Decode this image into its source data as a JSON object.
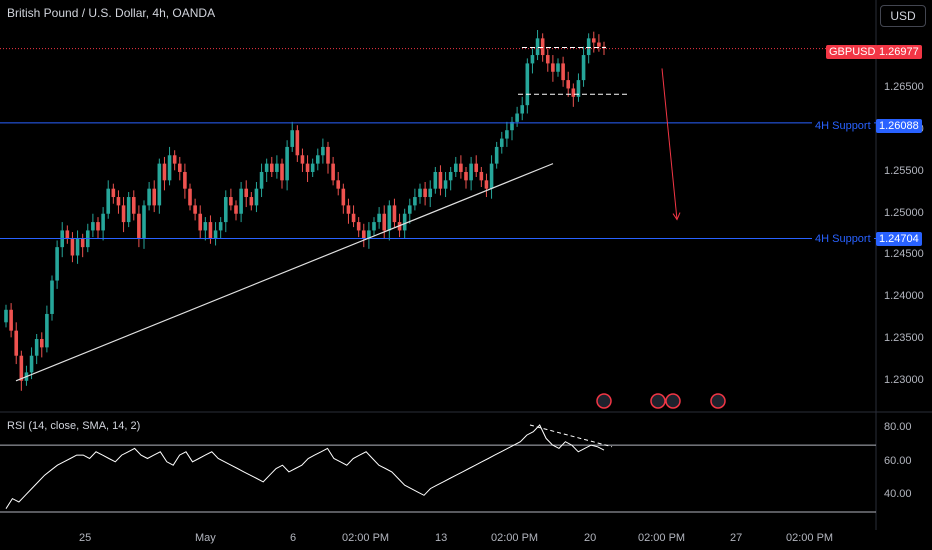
{
  "header": {
    "title": "British Pound / U.S. Dollar, 4h, OANDA",
    "currency_button": "USD"
  },
  "colors": {
    "background": "#000000",
    "up": "#26a69a",
    "down": "#ef5350",
    "support": "#2962ff",
    "current_price": "#f23645",
    "rsi_line": "#ffffff",
    "trendline": "#e0e0e0",
    "forecast_arrow": "#f23645"
  },
  "chart_data": [
    {
      "type": "candlestick",
      "symbol": "GBPUSD",
      "title": "British Pound / U.S. Dollar, 4h, OANDA",
      "ylim": [
        1.2265,
        1.272
      ],
      "y_ticks": [
        "1.26500",
        "1.26000",
        "1.25500",
        "1.25000",
        "1.24500",
        "1.24000",
        "1.23500",
        "1.23000"
      ],
      "x_ticks": [
        "25",
        "May",
        "6",
        "02:00 PM",
        "13",
        "02:00 PM",
        "20",
        "02:00 PM",
        "27",
        "02:00 PM"
      ],
      "current_price": {
        "label": "GBPUSD",
        "value": "1.26977"
      },
      "support_levels": [
        {
          "label": "4H Support",
          "value": "1.26088"
        },
        {
          "label": "4H Support",
          "value": "1.24704"
        }
      ],
      "closes": [
        1.2385,
        1.236,
        1.233,
        1.23,
        1.231,
        1.233,
        1.235,
        1.234,
        1.238,
        1.242,
        1.246,
        1.248,
        1.247,
        1.245,
        1.247,
        1.246,
        1.248,
        1.249,
        1.248,
        1.25,
        1.253,
        1.252,
        1.251,
        1.249,
        1.252,
        1.25,
        1.247,
        1.251,
        1.253,
        1.251,
        1.256,
        1.254,
        1.257,
        1.256,
        1.255,
        1.253,
        1.251,
        1.25,
        1.248,
        1.249,
        1.247,
        1.248,
        1.249,
        1.252,
        1.251,
        1.25,
        1.253,
        1.252,
        1.251,
        1.253,
        1.255,
        1.256,
        1.255,
        1.256,
        1.254,
        1.258,
        1.26,
        1.257,
        1.256,
        1.255,
        1.256,
        1.257,
        1.258,
        1.256,
        1.254,
        1.253,
        1.251,
        1.25,
        1.249,
        1.248,
        1.247,
        1.248,
        1.249,
        1.25,
        1.248,
        1.251,
        1.249,
        1.248,
        1.25,
        1.251,
        1.252,
        1.253,
        1.252,
        1.253,
        1.255,
        1.253,
        1.254,
        1.255,
        1.256,
        1.255,
        1.254,
        1.256,
        1.255,
        1.254,
        1.253,
        1.256,
        1.258,
        1.259,
        1.26,
        1.261,
        1.262,
        1.263,
        1.268,
        1.269,
        1.271,
        1.269,
        1.268,
        1.267,
        1.268,
        1.266,
        1.265,
        1.264,
        1.266,
        1.269,
        1.271,
        1.2705,
        1.27,
        1.2698
      ]
    },
    {
      "type": "line",
      "title": "RSI (14, close, SMA, 14, 2)",
      "ylim": [
        30,
        85
      ],
      "y_ticks": [
        "80.00",
        "60.00",
        "40.00"
      ],
      "bands": [
        70,
        30
      ],
      "values": [
        32,
        38,
        36,
        40,
        44,
        48,
        52,
        55,
        58,
        60,
        62,
        64,
        64,
        62,
        66,
        64,
        62,
        60,
        64,
        66,
        68,
        64,
        62,
        64,
        66,
        60,
        58,
        64,
        66,
        60,
        62,
        64,
        66,
        62,
        60,
        58,
        56,
        54,
        52,
        50,
        48,
        52,
        56,
        58,
        54,
        56,
        58,
        62,
        64,
        66,
        68,
        62,
        60,
        58,
        62,
        64,
        66,
        62,
        58,
        56,
        54,
        50,
        46,
        44,
        42,
        40,
        44,
        46,
        48,
        50,
        52,
        54,
        56,
        58,
        60,
        62,
        64,
        66,
        68,
        70,
        72,
        76,
        78,
        82,
        74,
        70,
        68,
        72,
        70,
        66,
        68,
        70,
        69,
        67
      ]
    }
  ]
}
